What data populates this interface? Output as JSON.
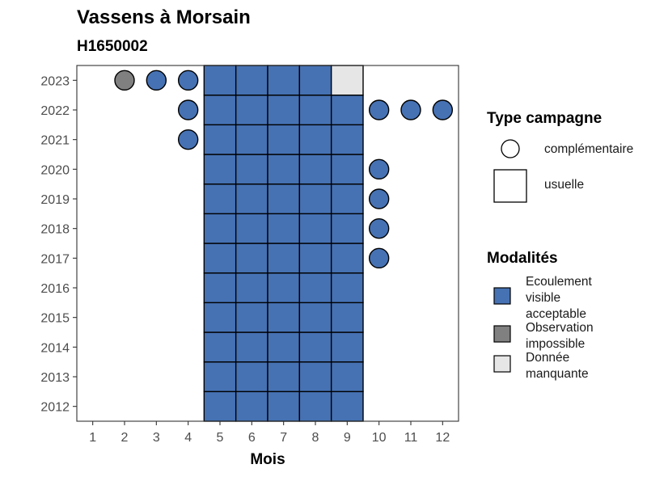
{
  "chart_data": {
    "type": "heatmap",
    "title": "Vassens à Morsain",
    "subtitle": "H1650002",
    "xlabel": "Mois",
    "ylabel": "",
    "x_ticks": [
      1,
      2,
      3,
      4,
      5,
      6,
      7,
      8,
      9,
      10,
      11,
      12
    ],
    "y_ticks": [
      2012,
      2013,
      2014,
      2015,
      2016,
      2017,
      2018,
      2019,
      2020,
      2021,
      2022,
      2023
    ],
    "grid": false,
    "legends": {
      "shape": {
        "title": "Type campagne",
        "position": "right",
        "entries": [
          {
            "label": "complémentaire",
            "shape": "circle"
          },
          {
            "label": "usuelle",
            "shape": "square"
          }
        ]
      },
      "fill": {
        "title": "Modalités",
        "position": "right",
        "entries": [
          {
            "key": "ecoulement",
            "label_lines": [
              "Ecoulement",
              "visible",
              "acceptable"
            ],
            "color": "#4672b4"
          },
          {
            "key": "impossible",
            "label_lines": [
              "Observation",
              "impossible"
            ],
            "color": "#808080"
          },
          {
            "key": "manquante",
            "label_lines": [
              "Donnée",
              "manquante"
            ],
            "color": "#e6e6e6"
          }
        ]
      }
    },
    "usuelle": {
      "years": [
        2012,
        2013,
        2014,
        2015,
        2016,
        2017,
        2018,
        2019,
        2020,
        2021,
        2022,
        2023
      ],
      "months": [
        5,
        6,
        7,
        8,
        9
      ],
      "default": "ecoulement",
      "exceptions": [
        {
          "year": 2023,
          "month": 9,
          "modalite": "manquante"
        }
      ]
    },
    "complementaire": [
      {
        "year": 2023,
        "month": 2,
        "modalite": "impossible"
      },
      {
        "year": 2023,
        "month": 3,
        "modalite": "ecoulement"
      },
      {
        "year": 2023,
        "month": 4,
        "modalite": "ecoulement"
      },
      {
        "year": 2022,
        "month": 4,
        "modalite": "ecoulement"
      },
      {
        "year": 2022,
        "month": 10,
        "modalite": "ecoulement"
      },
      {
        "year": 2022,
        "month": 11,
        "modalite": "ecoulement"
      },
      {
        "year": 2022,
        "month": 12,
        "modalite": "ecoulement"
      },
      {
        "year": 2021,
        "month": 4,
        "modalite": "ecoulement"
      },
      {
        "year": 2020,
        "month": 10,
        "modalite": "ecoulement"
      },
      {
        "year": 2019,
        "month": 10,
        "modalite": "ecoulement"
      },
      {
        "year": 2018,
        "month": 10,
        "modalite": "ecoulement"
      },
      {
        "year": 2017,
        "month": 10,
        "modalite": "ecoulement"
      }
    ]
  }
}
